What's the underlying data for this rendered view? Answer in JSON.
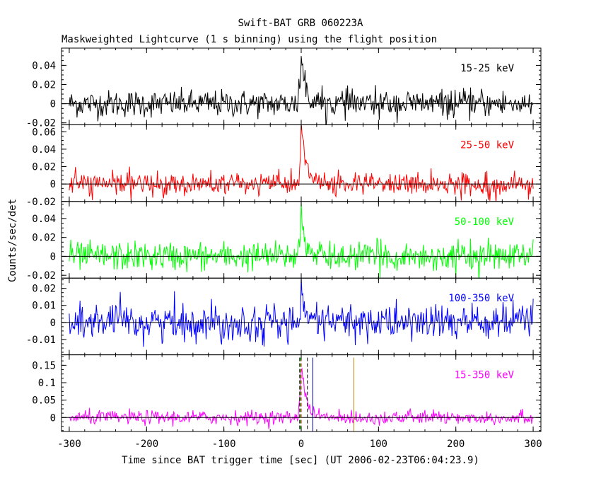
{
  "chart_data": {
    "type": "line",
    "title": "Swift-BAT GRB 060223A",
    "subtitle": "Maskweighted Lightcurve (1 s binning) using the flight position",
    "xlabel": "Time since BAT trigger time [sec] (UT 2006-02-23T06:04:23.9)",
    "ylabel": "Counts/sec/det",
    "xlim": [
      -310,
      310
    ],
    "x_ticks": [
      -300,
      -200,
      -100,
      0,
      100,
      200,
      300
    ],
    "x_tick_labels": [
      "-300",
      "-200",
      "-100",
      "0",
      "100",
      "200",
      "300"
    ],
    "grid": false,
    "panels": [
      {
        "band": "15-25 keV",
        "color": "#000000",
        "ylim": [
          -0.022,
          0.058
        ],
        "y_ticks": [
          -0.02,
          0,
          0.02,
          0.04
        ],
        "y_tick_labels": [
          "-0.02",
          "0",
          "0.02",
          "0.04"
        ],
        "noise_sigma": 0.007,
        "pulse": {
          "peak": 0.048,
          "rise": 1.5,
          "decay": 6
        }
      },
      {
        "band": "25-50 keV",
        "color": "#ff0000",
        "ylim": [
          -0.02,
          0.068
        ],
        "y_ticks": [
          -0.02,
          0,
          0.02,
          0.04,
          0.06
        ],
        "y_tick_labels": [
          "-0.02",
          "0",
          "0.02",
          "0.04",
          "0.06"
        ],
        "noise_sigma": 0.0065,
        "pulse": {
          "peak": 0.066,
          "rise": 1.5,
          "decay": 7
        }
      },
      {
        "band": "50-100 keV",
        "color": "#00ff00",
        "ylim": [
          -0.023,
          0.058
        ],
        "y_ticks": [
          -0.02,
          0,
          0.02,
          0.04
        ],
        "y_tick_labels": [
          "-0.02",
          "0",
          "0.02",
          "0.04"
        ],
        "noise_sigma": 0.0075,
        "pulse": {
          "peak": 0.052,
          "rise": 1.5,
          "decay": 4
        }
      },
      {
        "band": "100-350 keV",
        "color": "#0000ff",
        "ylim": [
          -0.019,
          0.026
        ],
        "y_ticks": [
          -0.01,
          0,
          0.01,
          0.02
        ],
        "y_tick_labels": [
          "-0.01",
          "0",
          "0.01",
          "0.02"
        ],
        "noise_sigma": 0.0055,
        "pulse": {
          "peak": 0.015,
          "rise": 1,
          "decay": 3
        }
      },
      {
        "band": "15-350 keV",
        "color": "#ff00ff",
        "ylim": [
          -0.04,
          0.18
        ],
        "y_ticks": [
          0,
          0.05,
          0.1,
          0.15
        ],
        "y_tick_labels": [
          "0",
          "0.05",
          "0.1",
          "0.15"
        ],
        "noise_sigma": 0.01,
        "pulse": {
          "peak": 0.16,
          "rise": 1.5,
          "decay": 6
        }
      }
    ],
    "markers": [
      {
        "x": -2,
        "color": "#000000",
        "style": "dashed"
      },
      {
        "x": 8,
        "color": "#000000",
        "style": "dashed"
      },
      {
        "x": 0,
        "color": "#ff0000",
        "style": "dashed"
      },
      {
        "x": -1,
        "color": "#00cc00",
        "style": "dashed"
      },
      {
        "x": 15,
        "color": "#0000aa",
        "style": "solid"
      },
      {
        "x": 68,
        "color": "#b8860b",
        "style": "solid"
      }
    ]
  }
}
